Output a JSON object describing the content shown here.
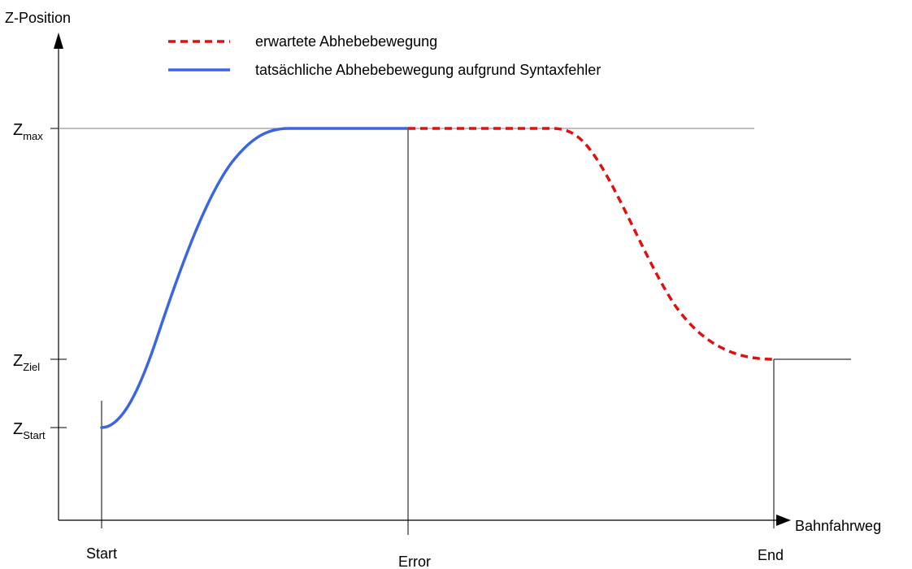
{
  "axes": {
    "y_label": "Z-Position",
    "x_label": "Bahnfahrweg"
  },
  "y_levels": [
    {
      "id": "max",
      "base": "Z",
      "sub": "max"
    },
    {
      "id": "ziel",
      "base": "Z",
      "sub": "Ziel"
    },
    {
      "id": "start",
      "base": "Z",
      "sub": "Start"
    }
  ],
  "x_marks": [
    {
      "id": "start",
      "label": "Start"
    },
    {
      "id": "error",
      "label": "Error"
    },
    {
      "id": "end",
      "label": "End"
    }
  ],
  "legend": [
    {
      "id": "expected",
      "label": "erwartete Abhebebewegung",
      "color": "#e01010",
      "style": "dashed"
    },
    {
      "id": "actual",
      "label": "tatsächliche Abhebebewegung aufgrund Syntaxfehler",
      "color": "#3b66e0",
      "style": "solid"
    }
  ],
  "colors": {
    "axis": "#000000",
    "guide": "#808080",
    "expected": "#e01010",
    "actual": "#3b66e0"
  }
}
